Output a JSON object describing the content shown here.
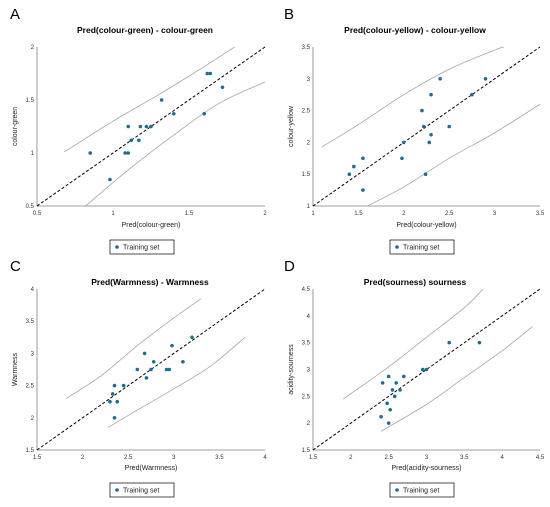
{
  "chart_data": [
    {
      "type": "scatter",
      "letter": "A",
      "title": "Pred(colour-green) - colour-green",
      "xlabel": "Pred(colour-green)",
      "ylabel": "colour-green",
      "xlim": [
        0.5,
        2
      ],
      "ylim": [
        0.5,
        2
      ],
      "xticks": [
        "0.5",
        "1",
        "1.5",
        "2"
      ],
      "yticks": [
        "0.5",
        "1",
        "1.5",
        "2"
      ],
      "reference_line": "y = x",
      "confidence_bands": {
        "upper": [
          [
            0.68,
            1.01
          ],
          [
            1.0,
            1.3
          ],
          [
            1.3,
            1.55
          ],
          [
            1.55,
            1.77
          ],
          [
            1.8,
            2.0
          ]
        ],
        "lower": [
          [
            0.82,
            0.5
          ],
          [
            1.1,
            0.84
          ],
          [
            1.4,
            1.17
          ],
          [
            1.7,
            1.47
          ],
          [
            2.0,
            1.67
          ]
        ]
      },
      "series": [
        {
          "name": "Training set",
          "points": [
            [
              0.85,
              1.0
            ],
            [
              0.98,
              0.75
            ],
            [
              1.08,
              1.0
            ],
            [
              1.1,
              1.0
            ],
            [
              1.1,
              1.25
            ],
            [
              1.12,
              1.12
            ],
            [
              1.17,
              1.12
            ],
            [
              1.18,
              1.25
            ],
            [
              1.22,
              1.25
            ],
            [
              1.25,
              1.25
            ],
            [
              1.32,
              1.5
            ],
            [
              1.4,
              1.37
            ],
            [
              1.6,
              1.37
            ],
            [
              1.62,
              1.75
            ],
            [
              1.64,
              1.75
            ],
            [
              1.72,
              1.62
            ]
          ]
        }
      ],
      "legend": "bottom"
    },
    {
      "type": "scatter",
      "letter": "B",
      "title": "Pred(colour-yellow) - colour-yellow",
      "xlabel": "Pred(colour-yellow)",
      "ylabel": "colour-yellow",
      "xlim": [
        1,
        3.5
      ],
      "ylim": [
        1,
        3.5
      ],
      "xticks": [
        "1",
        "1.5",
        "2",
        "2.5",
        "3",
        "3.5"
      ],
      "yticks": [
        "1",
        "1.5",
        "2",
        "2.5",
        "3",
        "3.5"
      ],
      "reference_line": "y = x",
      "confidence_bands": {
        "upper": [
          [
            1.1,
            1.93
          ],
          [
            1.5,
            2.28
          ],
          [
            2.0,
            2.75
          ],
          [
            2.5,
            3.15
          ],
          [
            3.0,
            3.45
          ],
          [
            3.1,
            3.5
          ]
        ],
        "lower": [
          [
            1.6,
            1.0
          ],
          [
            2.0,
            1.3
          ],
          [
            2.5,
            1.75
          ],
          [
            3.0,
            2.15
          ],
          [
            3.5,
            2.6
          ]
        ]
      },
      "series": [
        {
          "name": "Training set",
          "points": [
            [
              1.4,
              1.5
            ],
            [
              1.45,
              1.62
            ],
            [
              1.55,
              1.25
            ],
            [
              1.55,
              1.75
            ],
            [
              1.98,
              1.75
            ],
            [
              2.0,
              2.0
            ],
            [
              2.2,
              2.5
            ],
            [
              2.22,
              2.25
            ],
            [
              2.24,
              1.5
            ],
            [
              2.28,
              2.0
            ],
            [
              2.3,
              2.12
            ],
            [
              2.3,
              2.75
            ],
            [
              2.4,
              3.0
            ],
            [
              2.5,
              2.25
            ],
            [
              2.75,
              2.75
            ],
            [
              2.9,
              3.0
            ]
          ]
        }
      ],
      "legend": "bottom"
    },
    {
      "type": "scatter",
      "letter": "C",
      "title": "Pred(Warmness) - Warmness",
      "xlabel": "Pred(Warmness)",
      "ylabel": "Warmness",
      "xlim": [
        1.5,
        4
      ],
      "ylim": [
        1.5,
        4
      ],
      "xticks": [
        "1.5",
        "2",
        "2.5",
        "3",
        "3.5",
        "4"
      ],
      "yticks": [
        "1.5",
        "2",
        "2.5",
        "3",
        "3.5",
        "4"
      ],
      "reference_line": "y = x",
      "confidence_bands": {
        "upper": [
          [
            1.82,
            2.3
          ],
          [
            2.2,
            2.65
          ],
          [
            2.6,
            3.12
          ],
          [
            3.0,
            3.55
          ],
          [
            3.3,
            3.85
          ]
        ],
        "lower": [
          [
            2.28,
            1.85
          ],
          [
            2.6,
            2.12
          ],
          [
            3.0,
            2.45
          ],
          [
            3.4,
            2.8
          ],
          [
            3.78,
            3.25
          ]
        ]
      },
      "series": [
        {
          "name": "Training set",
          "points": [
            [
              2.3,
              2.25
            ],
            [
              2.33,
              2.37
            ],
            [
              2.35,
              2.0
            ],
            [
              2.35,
              2.5
            ],
            [
              2.38,
              2.25
            ],
            [
              2.45,
              2.5
            ],
            [
              2.6,
              2.75
            ],
            [
              2.68,
              3.0
            ],
            [
              2.7,
              2.62
            ],
            [
              2.75,
              2.75
            ],
            [
              2.78,
              2.87
            ],
            [
              2.92,
              2.75
            ],
            [
              2.95,
              2.75
            ],
            [
              2.98,
              3.12
            ],
            [
              3.1,
              2.87
            ],
            [
              3.2,
              3.25
            ]
          ]
        }
      ],
      "legend": "bottom"
    },
    {
      "type": "scatter",
      "letter": "D",
      "title": "Pred(sourness) sourness",
      "xlabel": "Pred(acidity-sourness)",
      "ylabel": "acidity-sourness",
      "xlim": [
        1.5,
        4.5
      ],
      "ylim": [
        1.5,
        4.5
      ],
      "xticks": [
        "1.5",
        "2",
        "2.5",
        "3",
        "3.5",
        "4",
        "4.5"
      ],
      "yticks": [
        "1.5",
        "2",
        "2.5",
        "3",
        "3.5",
        "4",
        "4.5"
      ],
      "reference_line": "y = x",
      "confidence_bands": {
        "upper": [
          [
            1.9,
            2.45
          ],
          [
            2.5,
            3.05
          ],
          [
            3.0,
            3.6
          ],
          [
            3.5,
            4.15
          ],
          [
            3.75,
            4.5
          ]
        ],
        "lower": [
          [
            2.4,
            1.85
          ],
          [
            3.0,
            2.35
          ],
          [
            3.5,
            2.85
          ],
          [
            4.0,
            3.35
          ],
          [
            4.4,
            3.8
          ]
        ]
      },
      "series": [
        {
          "name": "Training set",
          "points": [
            [
              2.4,
              2.12
            ],
            [
              2.42,
              2.75
            ],
            [
              2.48,
              2.37
            ],
            [
              2.5,
              2.0
            ],
            [
              2.5,
              2.87
            ],
            [
              2.52,
              2.25
            ],
            [
              2.55,
              2.62
            ],
            [
              2.58,
              2.5
            ],
            [
              2.6,
              2.75
            ],
            [
              2.65,
              2.62
            ],
            [
              2.7,
              2.87
            ],
            [
              2.95,
              3.0
            ],
            [
              3.0,
              3.0
            ],
            [
              3.3,
              3.5
            ],
            [
              3.7,
              3.5
            ]
          ]
        }
      ],
      "legend": "bottom"
    }
  ]
}
